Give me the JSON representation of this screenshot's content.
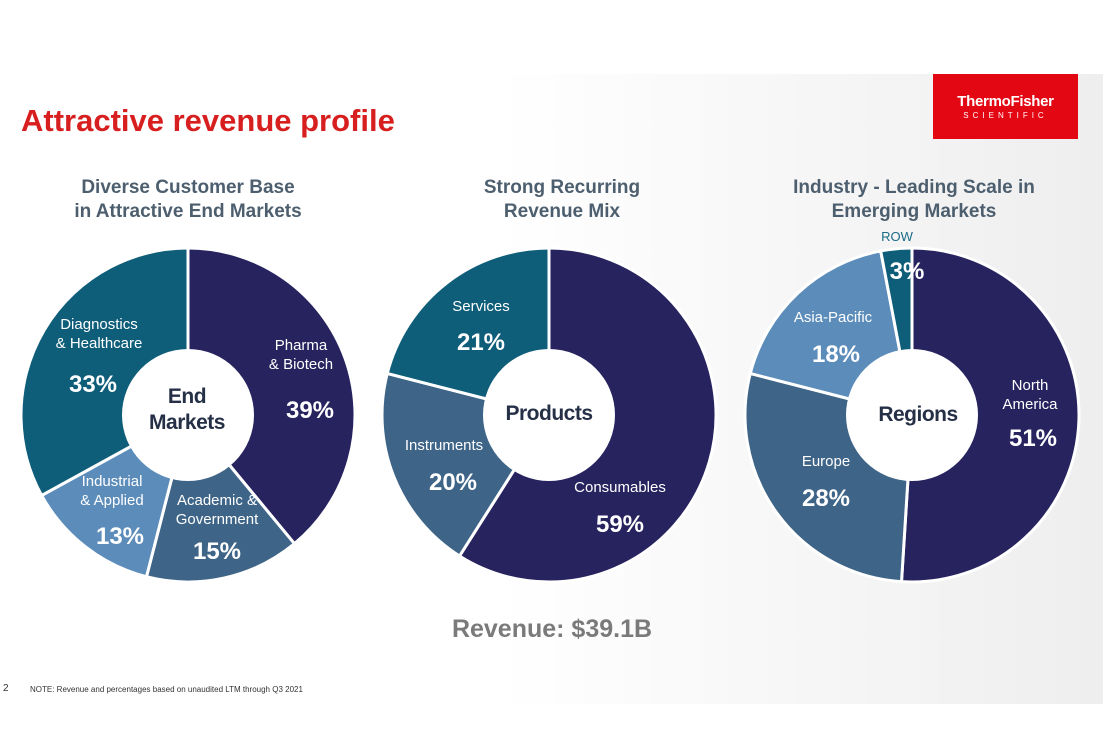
{
  "title": "Attractive revenue profile",
  "logo": {
    "line1": "ThermoFisher",
    "line2": "SCIENTIFIC"
  },
  "colors": {
    "title": "#d81f1f",
    "logo_bg": "#e30613",
    "navy": "#27235f",
    "teal": "#0e5d79",
    "steel": "#3e6487",
    "light_blue": "#5b8cba",
    "heading": "#4d5f6f",
    "center_text": "#253047"
  },
  "chart_data": [
    {
      "type": "pie",
      "heading": [
        "Diverse Customer Base",
        "in Attractive End Markets"
      ],
      "center_label": [
        "End",
        "Markets"
      ],
      "slices": [
        {
          "label": [
            "Pharma",
            "& Biotech"
          ],
          "value": 39,
          "display": "39%",
          "color": "#27235f"
        },
        {
          "label": [
            "Academic &",
            "Government"
          ],
          "value": 15,
          "display": "15%",
          "color": "#3e6487"
        },
        {
          "label": [
            "Industrial",
            "& Applied"
          ],
          "value": 13,
          "display": "13%",
          "color": "#5b8cba"
        },
        {
          "label": [
            "Diagnostics",
            "& Healthcare"
          ],
          "value": 33,
          "display": "33%",
          "color": "#0e5d79"
        }
      ]
    },
    {
      "type": "pie",
      "heading": [
        "Strong Recurring",
        "Revenue Mix"
      ],
      "center_label": [
        "Products"
      ],
      "slices": [
        {
          "label": [
            "Consumables"
          ],
          "value": 59,
          "display": "59%",
          "color": "#27235f"
        },
        {
          "label": [
            "Instruments"
          ],
          "value": 20,
          "display": "20%",
          "color": "#3e6487"
        },
        {
          "label": [
            "Services"
          ],
          "value": 21,
          "display": "21%",
          "color": "#0e5d79"
        }
      ]
    },
    {
      "type": "pie",
      "heading": [
        "Industry - Leading Scale in",
        "Emerging Markets"
      ],
      "center_label": [
        "Regions"
      ],
      "slices": [
        {
          "label": [
            "North",
            "America"
          ],
          "value": 51,
          "display": "51%",
          "color": "#27235f"
        },
        {
          "label": [
            "Europe"
          ],
          "value": 28,
          "display": "28%",
          "color": "#3e6487"
        },
        {
          "label": [
            "Asia-Pacific"
          ],
          "value": 18,
          "display": "18%",
          "color": "#5b8cba"
        },
        {
          "label": [
            "ROW"
          ],
          "value": 3,
          "display": "3%",
          "color": "#0e5d79"
        }
      ]
    }
  ],
  "revenue": "Revenue: $39.1B",
  "page_number": "2",
  "note": "NOTE: Revenue and percentages based on unaudited LTM through Q3 2021"
}
